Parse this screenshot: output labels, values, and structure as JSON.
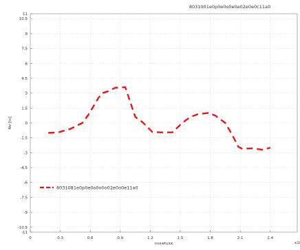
{
  "chart_data": {
    "type": "line",
    "title": "8031001e0p0e0o0e0e02e0e0c11a0",
    "xlabel": "nsxwtuxx",
    "ylabel": "Nv [ts]",
    "x_exponent": "x10³",
    "xlim": [
      0,
      2.67
    ],
    "ylim": [
      -11,
      11
    ],
    "x_ticks": [
      "0",
      "0.3",
      "0.6",
      "0.9",
      "1.2",
      "1.5",
      "1.8",
      "2.1",
      "2.4"
    ],
    "x_tick_values": [
      0,
      0.3,
      0.6,
      0.9,
      1.2,
      1.5,
      1.8,
      2.1,
      2.4
    ],
    "y_ticks": [
      "11",
      "10.5",
      "9",
      "7.5",
      "6",
      "4.5",
      "3",
      "1.5",
      "0",
      "-1.5",
      "-3",
      "-4.5",
      "-6",
      "-7.5",
      "-9",
      "-10.5",
      "-11"
    ],
    "y_tick_values": [
      11,
      10.5,
      9,
      7.5,
      6,
      4.5,
      3,
      1.5,
      0,
      -1.5,
      -3,
      -4.5,
      -6,
      -7.5,
      -9,
      -10.5,
      -11
    ],
    "grid": true,
    "legend_position": "lower-left",
    "color": "#e31a1c",
    "series": [
      {
        "name": "8031081e0p0e0o0o0o02e0o0e11a0",
        "points": [
          [
            0.18,
            -1.0
          ],
          [
            0.28,
            -0.95
          ],
          [
            0.4,
            -0.6
          ],
          [
            0.52,
            0.0
          ],
          [
            0.58,
            0.8
          ],
          [
            0.68,
            2.5
          ],
          [
            0.72,
            3.0
          ],
          [
            0.78,
            3.2
          ],
          [
            0.85,
            3.55
          ],
          [
            0.95,
            3.6
          ],
          [
            1.05,
            0.6
          ],
          [
            1.12,
            0.1
          ],
          [
            1.22,
            -0.9
          ],
          [
            1.3,
            -0.95
          ],
          [
            1.42,
            -0.95
          ],
          [
            1.52,
            0.0
          ],
          [
            1.6,
            0.6
          ],
          [
            1.68,
            0.9
          ],
          [
            1.78,
            1.0
          ],
          [
            1.85,
            0.75
          ],
          [
            1.95,
            0.0
          ],
          [
            2.02,
            -1.2
          ],
          [
            2.08,
            -2.4
          ],
          [
            2.12,
            -2.6
          ],
          [
            2.22,
            -2.55
          ],
          [
            2.32,
            -2.7
          ],
          [
            2.4,
            -2.5
          ]
        ]
      }
    ]
  }
}
